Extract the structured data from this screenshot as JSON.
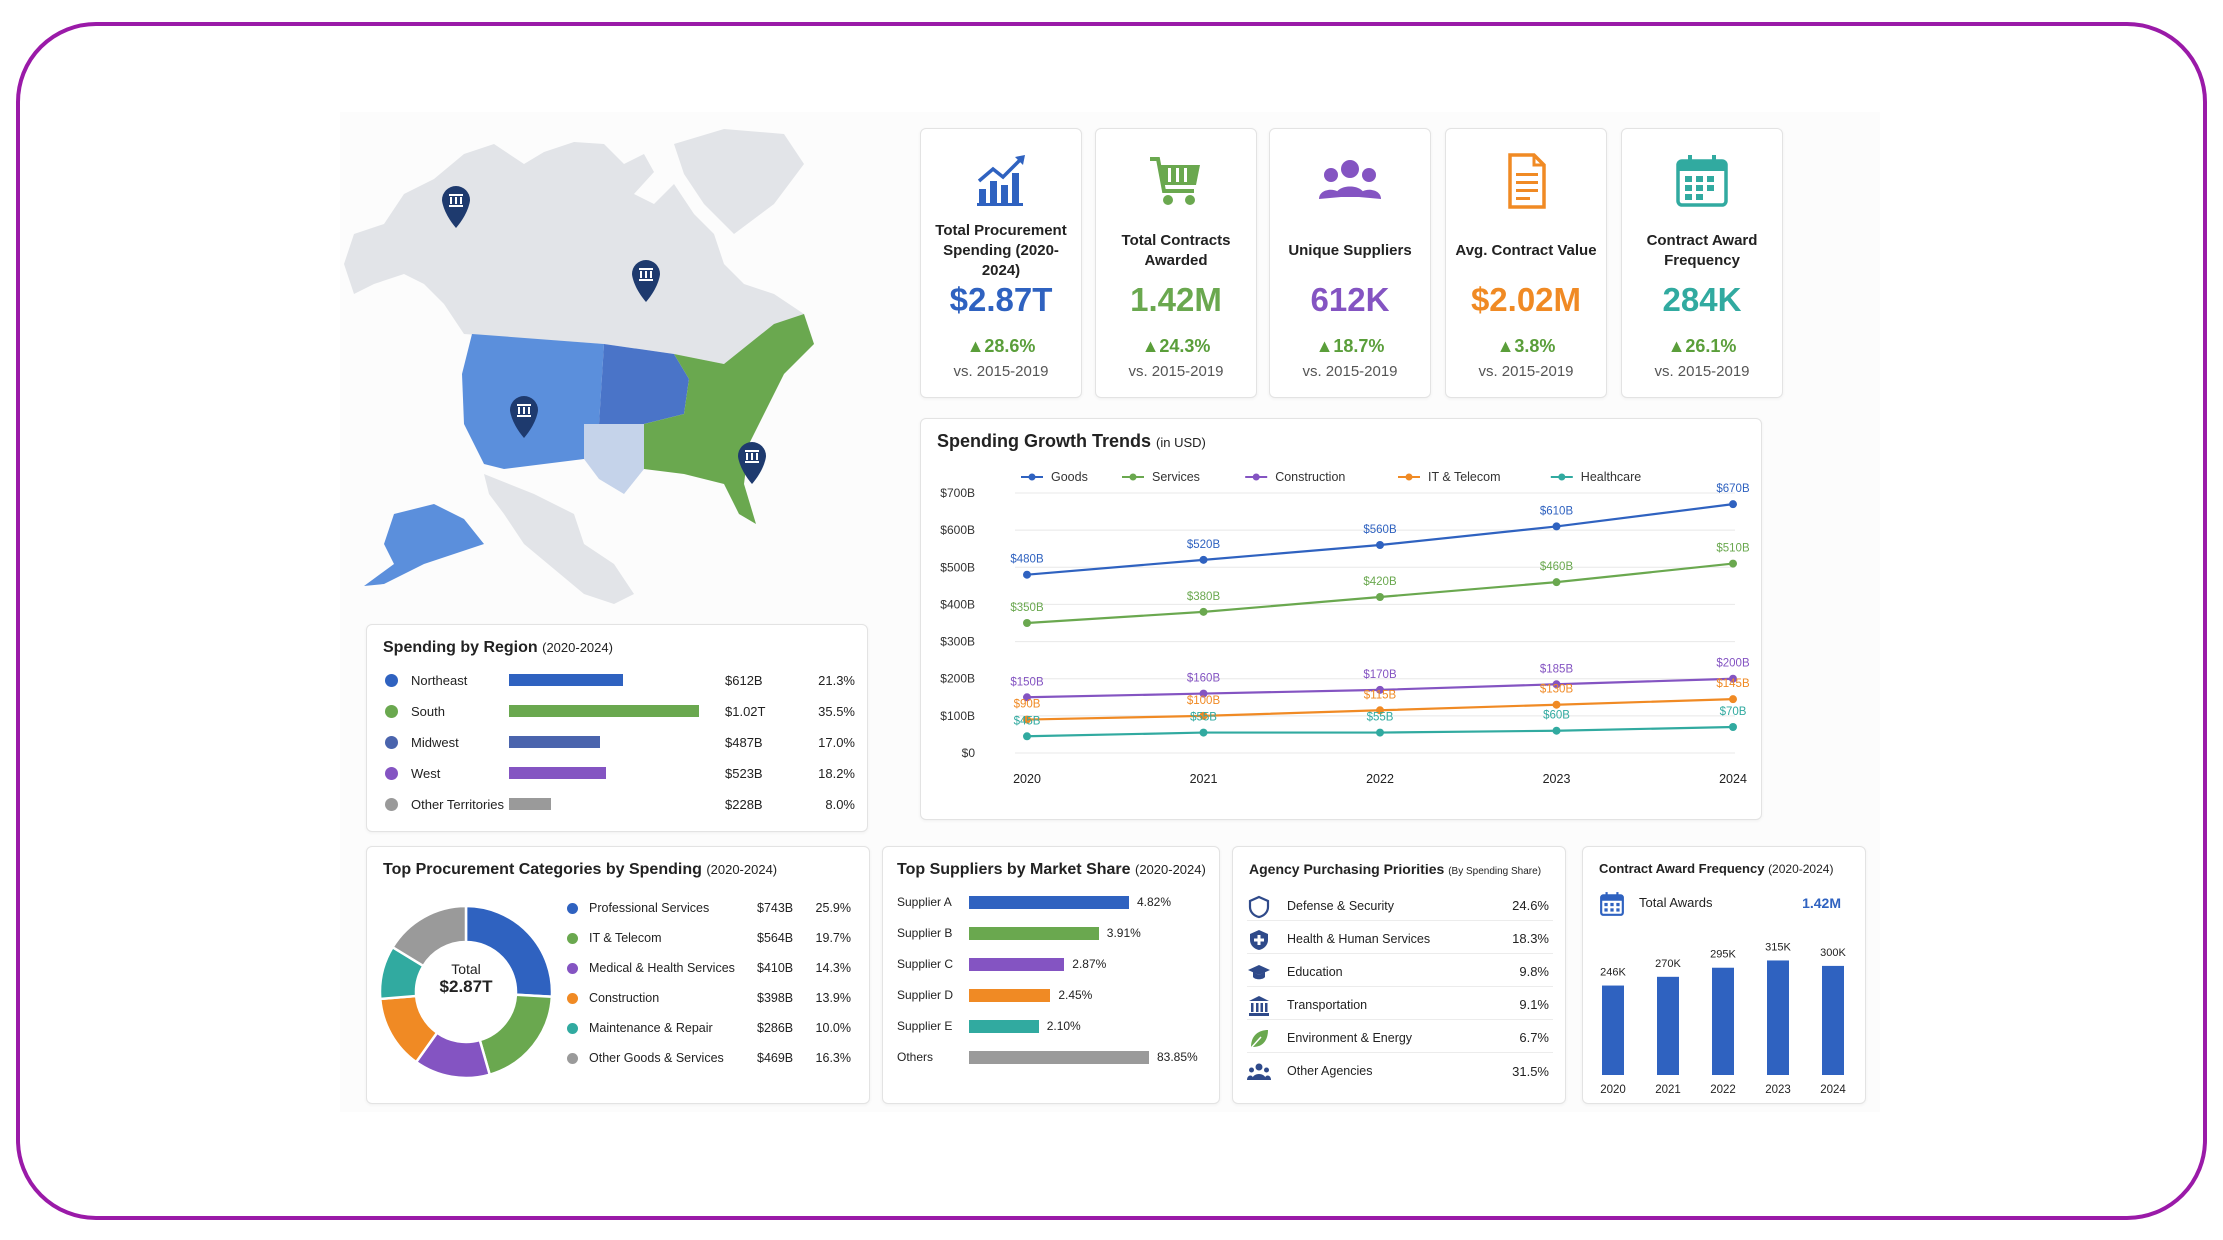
{
  "colors": {
    "blue": "#2f62c0",
    "green": "#6aa84f",
    "purple": "#8454c2",
    "orange": "#f08a24",
    "teal": "#31aaa0",
    "gray": "#9a9a9a",
    "navy": "#4a64ad",
    "frame": "#9a1aa8",
    "up": "#5a9e3a"
  },
  "map": {
    "pins": [
      "bank-pin-alaska",
      "bank-pin-canada",
      "bank-pin-west",
      "bank-pin-southeast"
    ],
    "regions": [
      {
        "name": "West",
        "color": "#5b8fdc"
      },
      {
        "name": "Midwest",
        "color": "#4a74c8"
      },
      {
        "name": "Northeast/South",
        "color": "#6aa84f"
      },
      {
        "name": "Texas",
        "color": "#c5d3ea"
      }
    ]
  },
  "kpis": [
    {
      "icon": "growth-chart-icon",
      "label": "Total Procurement Spending (2020-2024)",
      "value": "$2.87T",
      "change": "▲28.6%",
      "compare": "vs. 2015-2019",
      "color": "#2f62c0"
    },
    {
      "icon": "shopping-cart-icon",
      "label": "Total Contracts Awarded",
      "value": "1.42M",
      "change": "▲24.3%",
      "compare": "vs. 2015-2019",
      "color": "#6aa84f"
    },
    {
      "icon": "users-group-icon",
      "label": "Unique Suppliers",
      "value": "612K",
      "change": "▲18.7%",
      "compare": "vs. 2015-2019",
      "color": "#8454c2"
    },
    {
      "icon": "document-icon",
      "label": "Avg. Contract Value",
      "value": "$2.02M",
      "change": "▲3.8%",
      "compare": "vs. 2015-2019",
      "color": "#f08a24"
    },
    {
      "icon": "calendar-icon",
      "label": "Contract Award Frequency",
      "value": "284K",
      "change": "▲26.1%",
      "compare": "vs. 2015-2019",
      "color": "#31aaa0"
    }
  ],
  "region_panel": {
    "title": "Spending by Region",
    "subtitle": "(2020-2024)",
    "rows": [
      {
        "name": "Northeast",
        "amount": "$612B",
        "share": "21.3%",
        "value": 612,
        "color": "#2f62c0"
      },
      {
        "name": "South",
        "amount": "$1.02T",
        "share": "35.5%",
        "value": 1020,
        "color": "#6aa84f"
      },
      {
        "name": "Midwest",
        "amount": "$487B",
        "share": "17.0%",
        "value": 487,
        "color": "#4a64ad"
      },
      {
        "name": "West",
        "amount": "$523B",
        "share": "18.2%",
        "value": 523,
        "color": "#8454c2"
      },
      {
        "name": "Other Territories",
        "amount": "$228B",
        "share": "8.0%",
        "value": 228,
        "color": "#9a9a9a"
      }
    ]
  },
  "trend_panel": {
    "title": "Spending Growth Trends",
    "subtitle": "(in USD)"
  },
  "categories_panel": {
    "title": "Top Procurement Categories by Spending",
    "subtitle": "(2020-2024)",
    "center_label": "Total",
    "center_value": "$2.87T"
  },
  "suppliers_panel": {
    "title": "Top Suppliers by Market Share",
    "subtitle": "(2020-2024)"
  },
  "priorities_panel": {
    "title": "Agency Purchasing Priorities",
    "subtitle": "(By Spending Share)",
    "rows": [
      {
        "icon": "shield-icon",
        "name": "Defense & Security",
        "share": "24.6%"
      },
      {
        "icon": "health-shield-icon",
        "name": "Health & Human Services",
        "share": "18.3%"
      },
      {
        "icon": "graduation-cap-icon",
        "name": "Education",
        "share": "9.8%"
      },
      {
        "icon": "building-columns-icon",
        "name": "Transportation",
        "share": "9.1%"
      },
      {
        "icon": "leaf-icon",
        "name": "Environment & Energy",
        "share": "6.7%"
      },
      {
        "icon": "people-icon",
        "name": "Other Agencies",
        "share": "31.5%"
      }
    ]
  },
  "frequency_panel": {
    "title": "Contract Award Frequency",
    "subtitle": "(2020-2024)",
    "total_label": "Total Awards",
    "total_value": "1.42M"
  },
  "chart_data": [
    {
      "type": "line",
      "title": "Spending Growth Trends",
      "subtitle": "(in USD)",
      "x": [
        "2020",
        "2021",
        "2022",
        "2023",
        "2024"
      ],
      "ylim": [
        0,
        700
      ],
      "y_ticks": [
        "$0",
        "$100B",
        "$200B",
        "$300B",
        "$400B",
        "$500B",
        "$600B",
        "$700B"
      ],
      "grid": true,
      "legend_position": "top",
      "series": [
        {
          "name": "Goods",
          "color": "#2f62c0",
          "values": [
            480,
            520,
            560,
            610,
            670
          ],
          "labels": [
            "$480B",
            "$520B",
            "$560B",
            "$610B",
            "$670B"
          ]
        },
        {
          "name": "Services",
          "color": "#6aa84f",
          "values": [
            350,
            380,
            420,
            460,
            510
          ],
          "labels": [
            "$350B",
            "$380B",
            "$420B",
            "$460B",
            "$510B"
          ]
        },
        {
          "name": "Construction",
          "color": "#8454c2",
          "values": [
            150,
            160,
            170,
            185,
            200
          ],
          "labels": [
            "$150B",
            "$160B",
            "$170B",
            "$185B",
            "$200B"
          ]
        },
        {
          "name": "IT & Telecom",
          "color": "#f08a24",
          "values": [
            90,
            100,
            115,
            130,
            145
          ],
          "labels": [
            "$90B",
            "$100B",
            "$115B",
            "$130B",
            "$145B"
          ]
        },
        {
          "name": "Healthcare",
          "color": "#31aaa0",
          "values": [
            45,
            55,
            55,
            60,
            70
          ],
          "labels": [
            "$45B",
            "$55B",
            "$55B",
            "$60B",
            "$70B"
          ]
        }
      ]
    },
    {
      "type": "pie",
      "title": "Top Procurement Categories by Spending",
      "subtitle": "(2020-2024)",
      "slices": [
        {
          "name": "Professional Services",
          "amount": "$743B",
          "share": "25.9%",
          "value": 25.9,
          "color": "#2f62c0"
        },
        {
          "name": "IT & Telecom",
          "amount": "$564B",
          "share": "19.7%",
          "value": 19.7,
          "color": "#6aa84f"
        },
        {
          "name": "Medical & Health Services",
          "amount": "$410B",
          "share": "14.3%",
          "value": 14.3,
          "color": "#8454c2"
        },
        {
          "name": "Construction",
          "amount": "$398B",
          "share": "13.9%",
          "value": 13.9,
          "color": "#f08a24"
        },
        {
          "name": "Maintenance & Repair",
          "amount": "$286B",
          "share": "10.0%",
          "value": 10.0,
          "color": "#31aaa0"
        },
        {
          "name": "Other Goods & Services",
          "amount": "$469B",
          "share": "16.3%",
          "value": 16.3,
          "color": "#9a9a9a"
        }
      ]
    },
    {
      "type": "bar",
      "orientation": "horizontal",
      "title": "Top Suppliers by Market Share",
      "subtitle": "(2020-2024)",
      "categories": [
        "Supplier A",
        "Supplier B",
        "Supplier C",
        "Supplier D",
        "Supplier E",
        "Others"
      ],
      "values": [
        4.82,
        3.91,
        2.87,
        2.45,
        2.1,
        83.85
      ],
      "labels": [
        "4.82%",
        "3.91%",
        "2.87%",
        "2.45%",
        "2.10%",
        "83.85%"
      ],
      "colors": [
        "#2f62c0",
        "#6aa84f",
        "#8454c2",
        "#f08a24",
        "#31aaa0",
        "#9a9a9a"
      ]
    },
    {
      "type": "bar",
      "title": "Contract Award Frequency",
      "subtitle": "(2020-2024)",
      "categories": [
        "2020",
        "2021",
        "2022",
        "2023",
        "2024"
      ],
      "values": [
        246,
        270,
        295,
        315,
        300
      ],
      "labels": [
        "246K",
        "270K",
        "295K",
        "315K",
        "300K"
      ],
      "color": "#2f62c0"
    }
  ]
}
